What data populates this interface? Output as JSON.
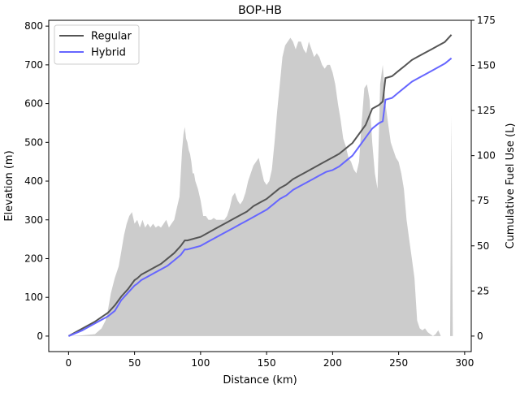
{
  "chart_data": {
    "type": "line",
    "title": "BOP-HB",
    "xlabel": "Distance (km)",
    "ylabel_left": "Elevation (m)",
    "ylabel_right": "Cumulative Fuel Use (L)",
    "xlim": [
      -15,
      305
    ],
    "ylim_left": [
      -40,
      815
    ],
    "ylim_right": [
      -8.6,
      175
    ],
    "xticks": [
      0,
      50,
      100,
      150,
      200,
      250,
      300
    ],
    "yticks_left": [
      0,
      100,
      200,
      300,
      400,
      500,
      600,
      700,
      800
    ],
    "yticks_right": [
      0,
      25,
      50,
      75,
      100,
      125,
      150,
      175
    ],
    "legend_position": "upper-left",
    "grid": false,
    "elevation_profile": {
      "color": "#cccccc",
      "x": [
        0,
        10,
        20,
        25,
        28,
        30,
        32,
        35,
        38,
        40,
        42,
        44,
        46,
        48,
        50,
        52,
        54,
        56,
        58,
        60,
        62,
        64,
        66,
        68,
        70,
        72,
        74,
        76,
        78,
        80,
        82,
        84,
        85,
        86,
        87,
        88,
        89,
        90,
        91,
        92,
        93,
        94,
        95,
        96,
        98,
        100,
        102,
        104,
        106,
        108,
        110,
        112,
        114,
        116,
        118,
        120,
        122,
        124,
        126,
        128,
        130,
        132,
        134,
        136,
        138,
        140,
        142,
        144,
        146,
        148,
        150,
        152,
        154,
        156,
        158,
        160,
        162,
        164,
        166,
        168,
        170,
        172,
        174,
        176,
        178,
        180,
        182,
        184,
        186,
        188,
        190,
        192,
        194,
        196,
        198,
        200,
        202,
        204,
        206,
        208,
        210,
        212,
        214,
        216,
        218,
        220,
        222,
        224,
        226,
        228,
        230,
        232,
        234,
        236,
        238,
        240,
        242,
        244,
        246,
        248,
        250,
        252,
        254,
        256,
        258,
        260,
        262,
        264,
        266,
        268,
        270,
        272,
        274,
        276,
        278,
        280,
        282,
        284,
        286,
        288,
        289,
        290,
        291
      ],
      "y": [
        0,
        2,
        5,
        20,
        40,
        70,
        110,
        150,
        180,
        220,
        260,
        290,
        310,
        320,
        290,
        300,
        280,
        300,
        280,
        290,
        280,
        290,
        280,
        285,
        280,
        290,
        300,
        280,
        290,
        300,
        330,
        360,
        420,
        480,
        520,
        540,
        510,
        500,
        480,
        470,
        450,
        420,
        420,
        400,
        380,
        350,
        310,
        310,
        300,
        300,
        305,
        300,
        300,
        300,
        300,
        310,
        330,
        360,
        370,
        350,
        340,
        350,
        370,
        400,
        420,
        440,
        450,
        460,
        430,
        400,
        390,
        400,
        430,
        500,
        580,
        650,
        720,
        750,
        760,
        770,
        760,
        740,
        760,
        760,
        740,
        730,
        760,
        740,
        720,
        730,
        720,
        700,
        690,
        700,
        700,
        680,
        650,
        600,
        560,
        510,
        490,
        460,
        450,
        430,
        420,
        450,
        550,
        640,
        650,
        610,
        500,
        420,
        380,
        650,
        700,
        600,
        550,
        500,
        480,
        460,
        450,
        420,
        380,
        300,
        250,
        200,
        150,
        40,
        20,
        15,
        20,
        10,
        5,
        0,
        5,
        15,
        0,
        0,
        0,
        0,
        0,
        570,
        0
      ]
    },
    "series": [
      {
        "name": "Regular",
        "color": "#555555",
        "x": [
          0,
          10,
          20,
          30,
          35,
          40,
          45,
          50,
          52,
          55,
          60,
          65,
          70,
          75,
          80,
          85,
          88,
          90,
          95,
          100,
          105,
          110,
          115,
          120,
          125,
          130,
          135,
          140,
          145,
          150,
          155,
          160,
          165,
          170,
          175,
          180,
          185,
          190,
          195,
          200,
          205,
          210,
          215,
          220,
          225,
          230,
          235,
          238,
          240,
          245,
          250,
          255,
          260,
          265,
          270,
          275,
          280,
          285,
          290
        ],
        "values": [
          0,
          4,
          8,
          13,
          17,
          22,
          26,
          31,
          32,
          34,
          36,
          38,
          40,
          43,
          46,
          50,
          53,
          53,
          54,
          55,
          57,
          59,
          61,
          63,
          65,
          67,
          69,
          72,
          74,
          76,
          79,
          82,
          84,
          87,
          89,
          91,
          93,
          95,
          97,
          99,
          101,
          104,
          107,
          112,
          117,
          126,
          128,
          130,
          143,
          144,
          147,
          150,
          153,
          155,
          157,
          159,
          161,
          163,
          167
        ]
      },
      {
        "name": "Hybrid",
        "color": "#6666ff",
        "x": [
          0,
          10,
          20,
          30,
          35,
          40,
          45,
          50,
          52,
          55,
          60,
          65,
          70,
          75,
          80,
          85,
          88,
          90,
          95,
          100,
          105,
          110,
          115,
          120,
          125,
          130,
          135,
          140,
          145,
          150,
          155,
          160,
          165,
          170,
          175,
          180,
          185,
          190,
          195,
          200,
          205,
          210,
          215,
          220,
          225,
          230,
          235,
          238,
          240,
          245,
          250,
          255,
          260,
          265,
          270,
          275,
          280,
          285,
          290
        ],
        "values": [
          0,
          3,
          7,
          11,
          14,
          20,
          24,
          28,
          29,
          31,
          33,
          35,
          37,
          39,
          42,
          45,
          48,
          48,
          49,
          50,
          52,
          54,
          56,
          58,
          60,
          62,
          64,
          66,
          68,
          70,
          73,
          76,
          78,
          81,
          83,
          85,
          87,
          89,
          91,
          92,
          94,
          97,
          100,
          105,
          110,
          115,
          118,
          119,
          131,
          132,
          135,
          138,
          141,
          143,
          145,
          147,
          149,
          151,
          154
        ]
      }
    ]
  }
}
